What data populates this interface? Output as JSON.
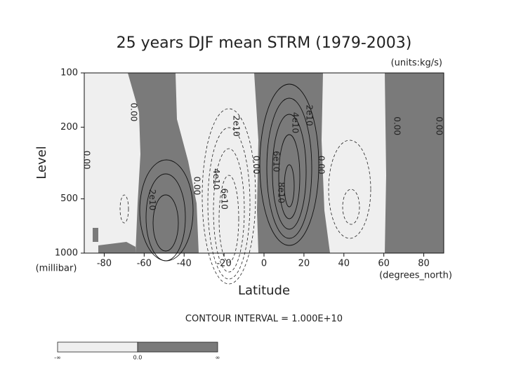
{
  "chart_data": {
    "type": "contour",
    "title": "25 years DJF mean STRM (1979-2003)",
    "units_label": "(units:kg/s)",
    "x_label": "Latitude",
    "x_unit_label": "(degrees_north)",
    "y_label": "Level",
    "y_unit_label": "(millibar)",
    "xlim": [
      -90,
      90
    ],
    "xticks": [
      -80,
      -60,
      -40,
      -20,
      0,
      20,
      40,
      60,
      80
    ],
    "ylim": [
      1000,
      100
    ],
    "yticks": [
      100,
      200,
      500,
      1000
    ],
    "y_log_scale": true,
    "contour_interval_label": "CONTOUR INTERVAL = 1.000E+10",
    "contour_labels": [
      {
        "text": "0.00",
        "x": -65.4,
        "y": 165
      },
      {
        "text": "0.00",
        "x": -89,
        "y": 304
      },
      {
        "text": "2e10",
        "x": -56,
        "y": 506
      },
      {
        "text": "0.00",
        "x": -33.8,
        "y": 423
      },
      {
        "text": "4e10",
        "x": -24,
        "y": 388
      },
      {
        "text": "6e10",
        "x": -20,
        "y": 500
      },
      {
        "text": "2e10",
        "x": -14,
        "y": 197
      },
      {
        "text": "0.00",
        "x": -4,
        "y": 324
      },
      {
        "text": "6e10",
        "x": 6,
        "y": 310
      },
      {
        "text": "8e10",
        "x": 8.5,
        "y": 462
      },
      {
        "text": "4e10",
        "x": 15.5,
        "y": 189
      },
      {
        "text": "2e10",
        "x": 22.5,
        "y": 172
      },
      {
        "text": "0.00",
        "x": 28.5,
        "y": 324
      },
      {
        "text": "0.00",
        "x": 66.5,
        "y": 197
      },
      {
        "text": "0.00",
        "x": 87.5,
        "y": 197
      }
    ],
    "colorbar_labels": [
      "-∞",
      "0.0",
      "∞"
    ]
  }
}
